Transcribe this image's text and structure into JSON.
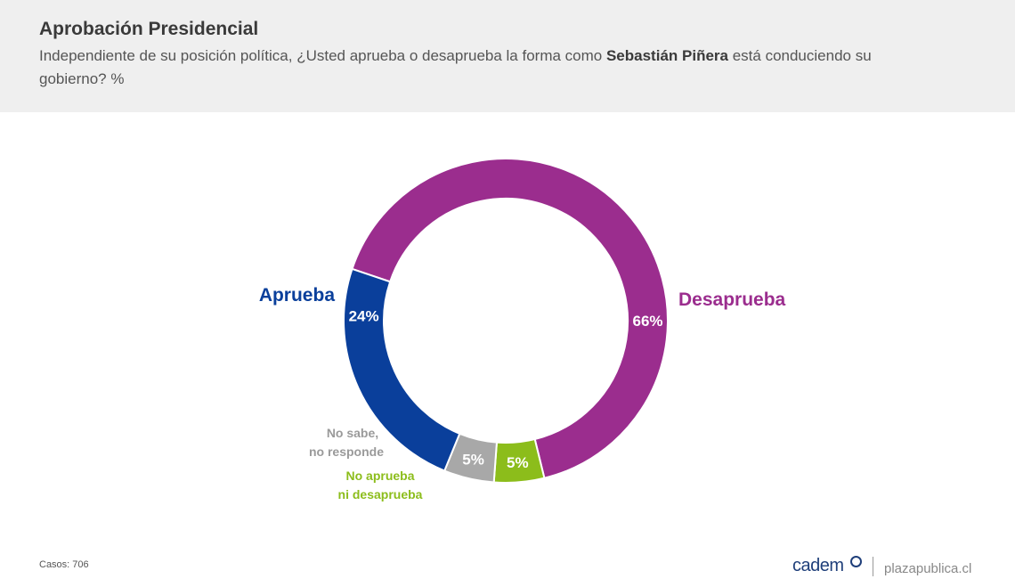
{
  "header": {
    "title": "Aprobación Presidencial",
    "subtitle_before": "Independiente de su posición política, ¿Usted aprueba o desaprueba la forma como ",
    "subtitle_bold": "Sebastián Piñera",
    "subtitle_after": " está conduciendo su gobierno? %"
  },
  "chart_data": {
    "type": "pie",
    "donut": true,
    "slices": [
      {
        "name": "Desaprueba",
        "value": 66,
        "label": "66%",
        "color": "#9b2d8e"
      },
      {
        "name": "No aprueba ni desaprueba",
        "value": 5,
        "label": "5%",
        "color": "#8cbd1b"
      },
      {
        "name": "No sabe, no responde",
        "value": 5,
        "label": "5%",
        "color": "#a8a8a8"
      },
      {
        "name": "Aprueba",
        "value": 24,
        "label": "24%",
        "color": "#0a3f9b"
      }
    ],
    "category_labels": {
      "aprueba": "Aprueba",
      "desaprueba": "Desaprueba",
      "ns_line1": "No sabe,",
      "ns_line2": "no responde",
      "ni_line1": "No aprueba",
      "ni_line2": "ni desaprueba"
    }
  },
  "footer": {
    "cases": "Casos: 706",
    "brand": "cadem",
    "site": "plazapublica.cl"
  }
}
